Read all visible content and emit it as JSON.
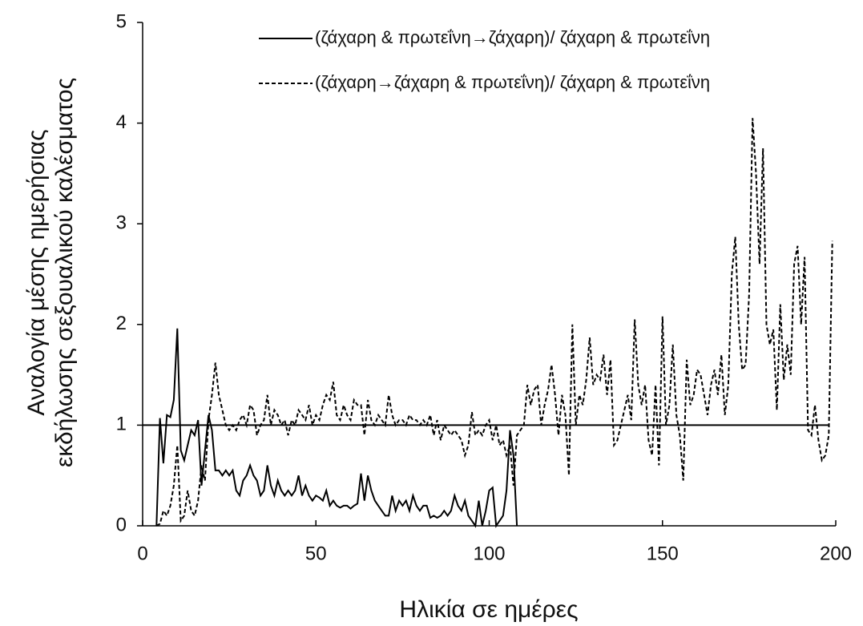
{
  "chart_data": {
    "type": "line",
    "xlabel": "Ηλικία σε ημέρες",
    "ylabel": [
      "Αναλογία μέσης ημερήσιας",
      "εκδήλωσης σεξουαλικού καλέσματος"
    ],
    "xlim": [
      0,
      200
    ],
    "xticks": [
      0,
      50,
      100,
      150,
      200
    ],
    "ylim": [
      0,
      5
    ],
    "yticks": [
      0,
      1,
      2,
      3,
      4,
      5
    ],
    "grid": false,
    "legend": "upper right",
    "reference_line": {
      "y": 1,
      "x": [
        0,
        198
      ],
      "color": "#000000"
    },
    "x": [
      4,
      5,
      6,
      7,
      8,
      9,
      10,
      11,
      12,
      13,
      14,
      15,
      16,
      17,
      18,
      19,
      20,
      21,
      22,
      23,
      24,
      25,
      26,
      27,
      28,
      29,
      30,
      31,
      32,
      33,
      34,
      35,
      36,
      37,
      38,
      39,
      40,
      41,
      42,
      43,
      44,
      45,
      46,
      47,
      48,
      49,
      50,
      51,
      52,
      53,
      54,
      55,
      56,
      57,
      58,
      59,
      60,
      61,
      62,
      63,
      64,
      65,
      66,
      67,
      68,
      69,
      70,
      71,
      72,
      73,
      74,
      75,
      76,
      77,
      78,
      79,
      80,
      81,
      82,
      83,
      84,
      85,
      86,
      87,
      88,
      89,
      90,
      91,
      92,
      93,
      94,
      95,
      96,
      97,
      98,
      99,
      100,
      101,
      102,
      103,
      104,
      105,
      106,
      107,
      108,
      109,
      110,
      111,
      112,
      113,
      114,
      115,
      116,
      117,
      118,
      119,
      120,
      121,
      122,
      123,
      124,
      125,
      126,
      127,
      128,
      129,
      130,
      131,
      132,
      133,
      134,
      135,
      136,
      137,
      138,
      139,
      140,
      141,
      142,
      143,
      144,
      145,
      146,
      147,
      148,
      149,
      150,
      151,
      152,
      153,
      154,
      155,
      156,
      157,
      158,
      159,
      160,
      161,
      162,
      163,
      164,
      165,
      166,
      167,
      168,
      169,
      170,
      171,
      172,
      173,
      174,
      175,
      176,
      177,
      178,
      179,
      180,
      181,
      182,
      183,
      184,
      185,
      186,
      187,
      188,
      189,
      190,
      191,
      192,
      193,
      194,
      195,
      196,
      197,
      198,
      199
    ],
    "series": [
      {
        "name": "(ζάχαρη & πρωτεΐνη→ζάχαρη)/ ζάχαρη & πρωτεΐνη",
        "color": "#000000",
        "dash": "solid",
        "values": [
          0,
          1.07,
          0.62,
          1.1,
          1.08,
          1.25,
          1.96,
          0.75,
          0.65,
          0.8,
          0.95,
          0.9,
          1.05,
          0.4,
          0.75,
          1.1,
          0.95,
          0.55,
          0.55,
          0.5,
          0.55,
          0.5,
          0.55,
          0.35,
          0.3,
          0.45,
          0.5,
          0.6,
          0.5,
          0.45,
          0.3,
          0.35,
          0.6,
          0.4,
          0.3,
          0.45,
          0.35,
          0.3,
          0.35,
          0.3,
          0.35,
          0.5,
          0.3,
          0.4,
          0.3,
          0.25,
          0.3,
          0.28,
          0.25,
          0.35,
          0.2,
          0.25,
          0.2,
          0.18,
          0.2,
          0.2,
          0.17,
          0.2,
          0.22,
          0.52,
          0.25,
          0.5,
          0.35,
          0.25,
          0.2,
          0.15,
          0.1,
          0.1,
          0.3,
          0.15,
          0.25,
          0.2,
          0.25,
          0.15,
          0.3,
          0.2,
          0.15,
          0.2,
          0.2,
          0.08,
          0.1,
          0.08,
          0.1,
          0.15,
          0.1,
          0.15,
          0.3,
          0.2,
          0.15,
          0.25,
          0.1,
          0.05,
          0,
          0.25,
          0,
          0.15,
          0.35,
          0.38,
          0,
          0.05,
          0.1,
          0.35,
          0.95,
          0.7,
          0,
          null,
          null,
          null,
          null,
          null,
          null,
          null,
          null,
          null,
          null,
          null,
          null,
          null,
          null,
          null,
          null,
          null,
          null,
          null,
          null,
          null,
          null,
          null,
          null,
          null,
          null,
          null,
          null,
          null,
          null,
          null,
          null,
          null,
          null,
          null,
          null,
          null,
          null,
          null,
          null,
          null,
          null,
          null,
          null,
          null,
          null,
          null,
          null,
          null,
          null,
          null,
          null,
          null,
          null,
          null,
          null,
          null,
          null,
          null,
          null,
          null,
          null,
          null,
          null,
          null,
          null,
          null,
          null,
          null,
          null,
          null,
          null,
          null,
          null,
          null,
          null,
          null,
          null,
          null,
          null,
          null,
          null,
          null,
          null,
          null,
          null,
          null,
          null,
          null,
          null,
          null
        ]
      },
      {
        "name": "(ζάχαρη→ζάχαρη & πρωτεΐνη)/ ζάχαρη & πρωτεΐνη",
        "color": "#000000",
        "dash": "dashed",
        "values": [
          0,
          0.02,
          0.15,
          0.1,
          0.2,
          0.4,
          0.8,
          0.05,
          0.1,
          0.35,
          0.15,
          0.1,
          0.25,
          0.6,
          0.45,
          1.05,
          1.3,
          1.62,
          1.3,
          1.15,
          1.0,
          0.95,
          1.0,
          0.95,
          1.05,
          1.1,
          1.0,
          1.2,
          1.15,
          0.9,
          1.0,
          1.05,
          1.3,
          1.0,
          1.15,
          1.1,
          1.0,
          1.05,
          0.9,
          1.05,
          1.0,
          1.15,
          1.1,
          1.05,
          1.2,
          1.0,
          1.1,
          1.05,
          1.2,
          1.3,
          1.25,
          1.43,
          1.1,
          1.05,
          1.2,
          1.1,
          1.05,
          1.25,
          1.2,
          1.2,
          0.9,
          1.25,
          1.05,
          1.0,
          1.1,
          1.05,
          1.0,
          1.3,
          1.1,
          1.0,
          1.05,
          1.05,
          1.0,
          1.1,
          1.05,
          1.05,
          1.0,
          1.05,
          1.0,
          1.1,
          0.9,
          1.05,
          0.85,
          1.0,
          0.95,
          0.9,
          0.95,
          0.9,
          0.85,
          0.7,
          0.8,
          1.13,
          0.9,
          0.95,
          0.9,
          1.0,
          1.05,
          0.85,
          1.0,
          0.8,
          0.85,
          0.7,
          0.8,
          0.4,
          0.9,
          0.95,
          1.0,
          1.4,
          1.2,
          1.35,
          1.4,
          1.0,
          1.2,
          1.35,
          1.6,
          1.3,
          0.9,
          1.3,
          1.1,
          0.5,
          2.0,
          1.0,
          1.3,
          1.2,
          1.45,
          1.87,
          1.4,
          1.5,
          1.45,
          1.7,
          1.3,
          1.65,
          0.8,
          0.85,
          1.0,
          1.15,
          1.3,
          1.05,
          2.05,
          1.4,
          1.2,
          1.4,
          0.85,
          0.7,
          1.4,
          0.6,
          2.08,
          1.0,
          1.2,
          1.8,
          1.1,
          0.9,
          0.45,
          1.65,
          1.2,
          1.3,
          1.55,
          1.5,
          1.3,
          1.1,
          1.4,
          1.55,
          1.3,
          1.7,
          1.1,
          1.4,
          2.5,
          2.87,
          2.0,
          1.55,
          1.6,
          2.3,
          4.05,
          3.5,
          2.6,
          3.75,
          2.0,
          1.8,
          1.95,
          1.15,
          2.2,
          1.45,
          1.8,
          1.5,
          2.6,
          2.78,
          2.0,
          2.67,
          0.95,
          0.9,
          1.2,
          0.85,
          0.65,
          0.7,
          0.9,
          2.83
        ]
      }
    ]
  }
}
